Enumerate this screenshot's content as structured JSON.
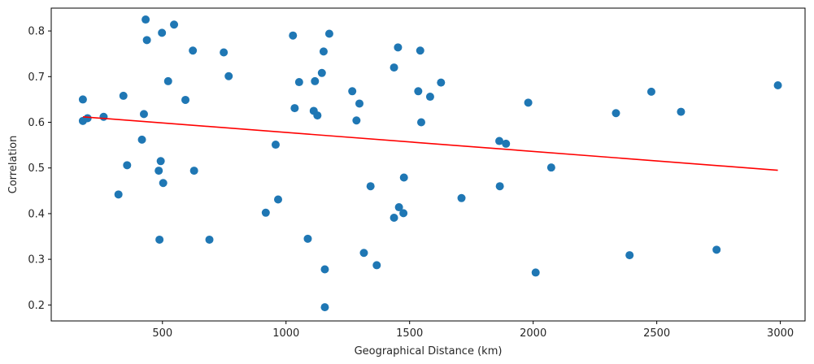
{
  "chart_data": {
    "type": "scatter",
    "title": "",
    "xlabel": "Geographical Distance (km)",
    "ylabel": "Correlation",
    "xlim": [
      50,
      3100
    ],
    "ylim": [
      0.165,
      0.85
    ],
    "xticks": [
      500,
      1000,
      1500,
      2000,
      2500,
      3000
    ],
    "xtick_labels": [
      "500",
      "1000",
      "1500",
      "2000",
      "2500",
      "3000"
    ],
    "yticks": [
      0.2,
      0.3,
      0.4,
      0.5,
      0.6,
      0.7,
      0.8
    ],
    "ytick_labels": [
      "0.2",
      "0.3",
      "0.4",
      "0.5",
      "0.6",
      "0.7",
      "0.8"
    ],
    "grid": false,
    "marker_color": "#1f77b4",
    "line_color": "#ff0000",
    "points": [
      {
        "x": 178,
        "y": 0.65
      },
      {
        "x": 178,
        "y": 0.603
      },
      {
        "x": 197,
        "y": 0.609
      },
      {
        "x": 262,
        "y": 0.612
      },
      {
        "x": 322,
        "y": 0.442
      },
      {
        "x": 342,
        "y": 0.658
      },
      {
        "x": 357,
        "y": 0.506
      },
      {
        "x": 417,
        "y": 0.562
      },
      {
        "x": 425,
        "y": 0.618
      },
      {
        "x": 432,
        "y": 0.825
      },
      {
        "x": 437,
        "y": 0.78
      },
      {
        "x": 485,
        "y": 0.494
      },
      {
        "x": 488,
        "y": 0.343
      },
      {
        "x": 493,
        "y": 0.515
      },
      {
        "x": 498,
        "y": 0.796
      },
      {
        "x": 503,
        "y": 0.467
      },
      {
        "x": 523,
        "y": 0.69
      },
      {
        "x": 547,
        "y": 0.814
      },
      {
        "x": 593,
        "y": 0.649
      },
      {
        "x": 623,
        "y": 0.757
      },
      {
        "x": 628,
        "y": 0.494
      },
      {
        "x": 690,
        "y": 0.343
      },
      {
        "x": 748,
        "y": 0.753
      },
      {
        "x": 768,
        "y": 0.701
      },
      {
        "x": 918,
        "y": 0.402
      },
      {
        "x": 958,
        "y": 0.551
      },
      {
        "x": 968,
        "y": 0.431
      },
      {
        "x": 1028,
        "y": 0.79
      },
      {
        "x": 1035,
        "y": 0.631
      },
      {
        "x": 1053,
        "y": 0.688
      },
      {
        "x": 1088,
        "y": 0.345
      },
      {
        "x": 1112,
        "y": 0.625
      },
      {
        "x": 1117,
        "y": 0.69
      },
      {
        "x": 1127,
        "y": 0.615
      },
      {
        "x": 1145,
        "y": 0.708
      },
      {
        "x": 1152,
        "y": 0.755
      },
      {
        "x": 1157,
        "y": 0.278
      },
      {
        "x": 1157,
        "y": 0.195
      },
      {
        "x": 1175,
        "y": 0.794
      },
      {
        "x": 1268,
        "y": 0.668
      },
      {
        "x": 1285,
        "y": 0.604
      },
      {
        "x": 1297,
        "y": 0.641
      },
      {
        "x": 1315,
        "y": 0.314
      },
      {
        "x": 1342,
        "y": 0.46
      },
      {
        "x": 1367,
        "y": 0.287
      },
      {
        "x": 1437,
        "y": 0.72
      },
      {
        "x": 1437,
        "y": 0.391
      },
      {
        "x": 1453,
        "y": 0.764
      },
      {
        "x": 1457,
        "y": 0.414
      },
      {
        "x": 1475,
        "y": 0.401
      },
      {
        "x": 1477,
        "y": 0.479
      },
      {
        "x": 1535,
        "y": 0.668
      },
      {
        "x": 1543,
        "y": 0.757
      },
      {
        "x": 1547,
        "y": 0.6
      },
      {
        "x": 1583,
        "y": 0.656
      },
      {
        "x": 1627,
        "y": 0.687
      },
      {
        "x": 1710,
        "y": 0.434
      },
      {
        "x": 1863,
        "y": 0.559
      },
      {
        "x": 1865,
        "y": 0.46
      },
      {
        "x": 1890,
        "y": 0.553
      },
      {
        "x": 1980,
        "y": 0.643
      },
      {
        "x": 2010,
        "y": 0.271
      },
      {
        "x": 2073,
        "y": 0.501
      },
      {
        "x": 2335,
        "y": 0.62
      },
      {
        "x": 2390,
        "y": 0.309
      },
      {
        "x": 2478,
        "y": 0.667
      },
      {
        "x": 2598,
        "y": 0.623
      },
      {
        "x": 2742,
        "y": 0.321
      },
      {
        "x": 2990,
        "y": 0.681
      }
    ],
    "trend_line": {
      "x": [
        178,
        2990
      ],
      "y": [
        0.612,
        0.495
      ]
    }
  }
}
